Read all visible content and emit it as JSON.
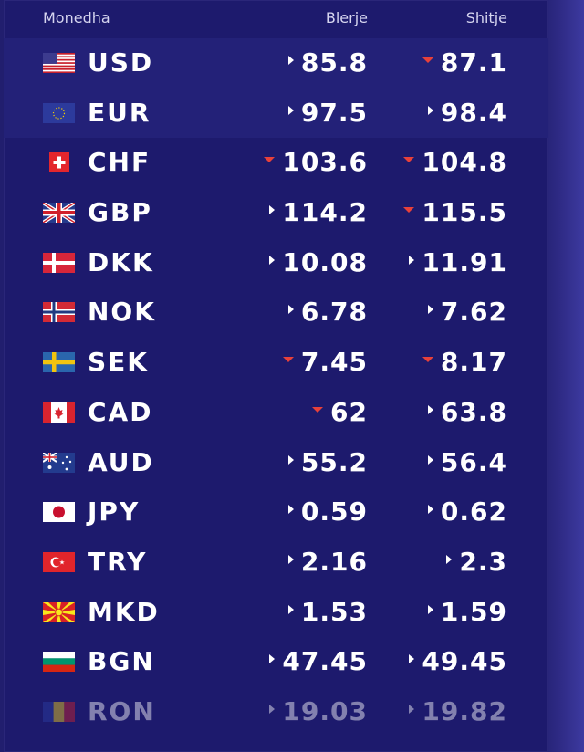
{
  "header": {
    "currency": "Monedha",
    "buy": "Blerje",
    "sell": "Shitje"
  },
  "colors": {
    "panel": "#1d1a6d",
    "highlight": "#232178",
    "down_arrow": "#e8413a",
    "text": "#ffffff"
  },
  "rows": [
    {
      "code": "USD",
      "flag": "us-flag-icon",
      "buy": "85.8",
      "buy_trend": "right",
      "sell": "87.1",
      "sell_trend": "down"
    },
    {
      "code": "EUR",
      "flag": "eu-flag-icon",
      "buy": "97.5",
      "buy_trend": "right",
      "sell": "98.4",
      "sell_trend": "right"
    },
    {
      "code": "CHF",
      "flag": "ch-flag-icon",
      "buy": "103.6",
      "buy_trend": "down",
      "sell": "104.8",
      "sell_trend": "down"
    },
    {
      "code": "GBP",
      "flag": "gb-flag-icon",
      "buy": "114.2",
      "buy_trend": "right",
      "sell": "115.5",
      "sell_trend": "down"
    },
    {
      "code": "DKK",
      "flag": "dk-flag-icon",
      "buy": "10.08",
      "buy_trend": "right",
      "sell": "11.91",
      "sell_trend": "right"
    },
    {
      "code": "NOK",
      "flag": "no-flag-icon",
      "buy": "6.78",
      "buy_trend": "right",
      "sell": "7.62",
      "sell_trend": "right"
    },
    {
      "code": "SEK",
      "flag": "se-flag-icon",
      "buy": "7.45",
      "buy_trend": "down",
      "sell": "8.17",
      "sell_trend": "down"
    },
    {
      "code": "CAD",
      "flag": "ca-flag-icon",
      "buy": "62",
      "buy_trend": "down",
      "sell": "63.8",
      "sell_trend": "right"
    },
    {
      "code": "AUD",
      "flag": "au-flag-icon",
      "buy": "55.2",
      "buy_trend": "right",
      "sell": "56.4",
      "sell_trend": "right"
    },
    {
      "code": "JPY",
      "flag": "jp-flag-icon",
      "buy": "0.59",
      "buy_trend": "right",
      "sell": "0.62",
      "sell_trend": "right"
    },
    {
      "code": "TRY",
      "flag": "tr-flag-icon",
      "buy": "2.16",
      "buy_trend": "right",
      "sell": "2.3",
      "sell_trend": "right"
    },
    {
      "code": "MKD",
      "flag": "mk-flag-icon",
      "buy": "1.53",
      "buy_trend": "right",
      "sell": "1.59",
      "sell_trend": "right"
    },
    {
      "code": "BGN",
      "flag": "bg-flag-icon",
      "buy": "47.45",
      "buy_trend": "right",
      "sell": "49.45",
      "sell_trend": "right"
    },
    {
      "code": "RON",
      "flag": "ro-flag-icon",
      "buy": "19.03",
      "buy_trend": "right",
      "sell": "19.82",
      "sell_trend": "right"
    }
  ]
}
